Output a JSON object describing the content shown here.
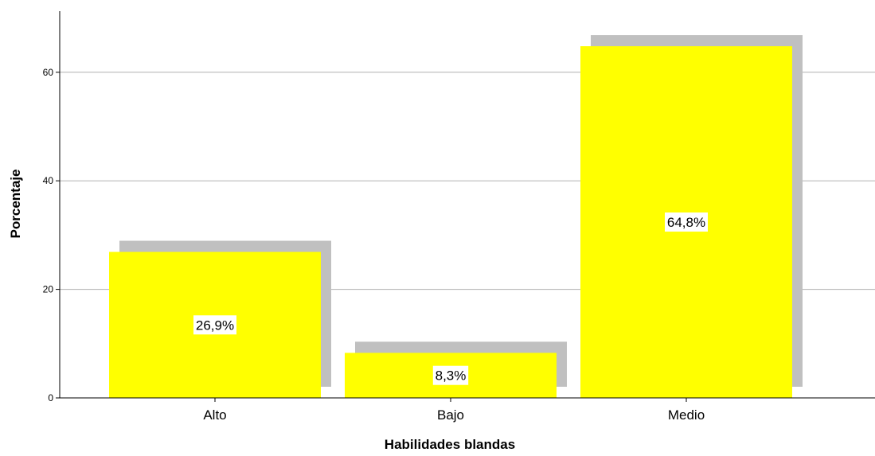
{
  "chart_data": {
    "type": "bar",
    "categories": [
      "Alto",
      "Bajo",
      "Medio"
    ],
    "values": [
      26.9,
      8.3,
      64.8
    ],
    "data_labels": [
      "26,9%",
      "8,3%",
      "64,8%"
    ],
    "xlabel": "Habilidades blandas",
    "ylabel": "Porcentaje",
    "ylim": [
      0,
      71
    ],
    "yticks": [
      0,
      20,
      40,
      60
    ],
    "grid": true,
    "bar_color": "#ffff00",
    "shadow_color": "#c0c0c0"
  }
}
